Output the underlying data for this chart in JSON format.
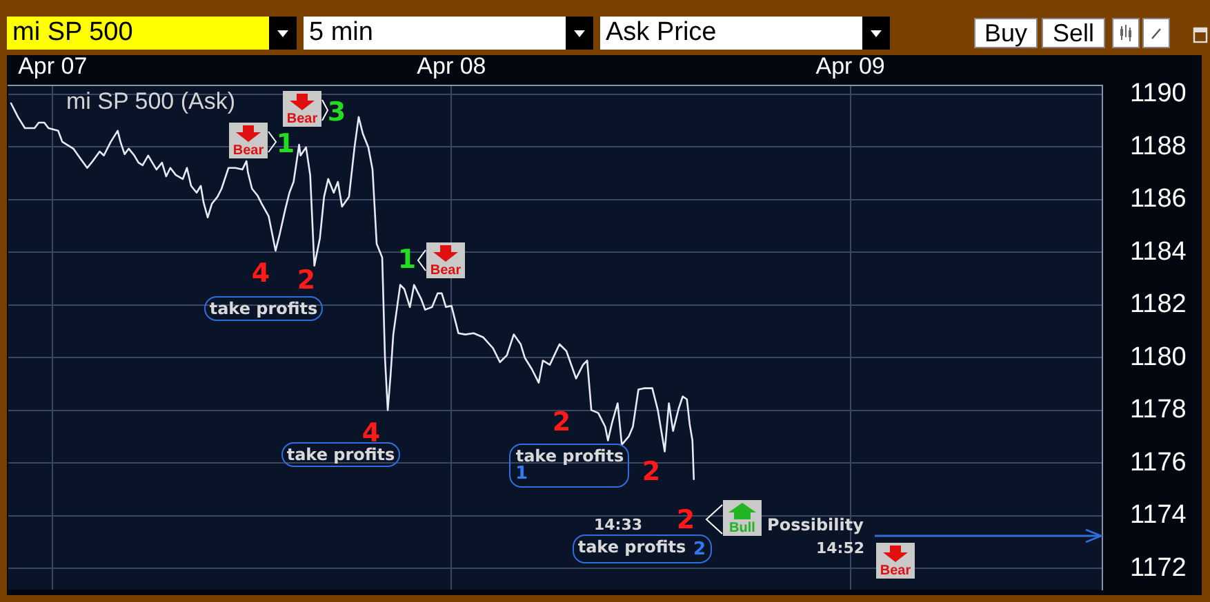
{
  "chart_data": {
    "type": "line",
    "title": "mi SP 500 (Ask)",
    "x": [
      "--04-06T21:30",
      "--04-06T21:55",
      "--04-06T22:20",
      "--04-06T22:55",
      "--04-06T23:10",
      "--04-06T23:30",
      "--04-06T23:45",
      "--04-07T00:20",
      "--04-07T00:35",
      "--04-07T01:15",
      "--04-07T01:40",
      "--04-07T02:05",
      "--04-07T02:25",
      "--04-07T02:50",
      "--04-07T03:05",
      "--04-07T03:30",
      "--04-07T03:55",
      "--04-07T04:05",
      "--04-07T04:20",
      "--04-07T04:35",
      "--04-07T04:55",
      "--04-07T05:10",
      "--04-07T05:25",
      "--04-07T05:45",
      "--04-07T06:00",
      "--04-07T06:15",
      "--04-07T06:35",
      "--04-07T06:50",
      "--04-07T07:05",
      "--04-07T07:25",
      "--04-07T07:50",
      "--04-07T08:05",
      "--04-07T08:20",
      "--04-07T08:40",
      "--04-07T08:55",
      "--04-07T09:05",
      "--04-07T09:20",
      "--04-07T09:35",
      "--04-07T09:55",
      "--04-07T10:10",
      "--04-07T10:35",
      "--04-07T11:00",
      "--04-07T11:25",
      "--04-07T11:40",
      "--04-07T11:45",
      "--04-07T12:00",
      "--04-07T12:20",
      "--04-07T12:35",
      "--04-07T13:00",
      "--04-07T13:25",
      "--04-07T13:40",
      "--04-07T14:00",
      "--04-07T14:15",
      "--04-07T14:30",
      "--04-07T14:50",
      "--04-07T14:55",
      "--04-07T15:15",
      "--04-07T15:30",
      "--04-07T15:45",
      "--04-07T16:05",
      "--04-07T16:20",
      "--04-07T16:35",
      "--04-07T16:55",
      "--04-07T17:10",
      "--04-07T17:25",
      "--04-07T17:50",
      "--04-07T18:10",
      "--04-07T18:25",
      "--04-07T18:40",
      "--04-07T19:00",
      "--04-07T19:15",
      "--04-07T19:30",
      "--04-07T19:50",
      "--04-07T20:00",
      "--04-07T20:10",
      "--04-07T20:20",
      "--04-07T20:30",
      "--04-07T20:55",
      "--04-07T21:10",
      "--04-07T21:30",
      "--04-07T21:45",
      "--04-07T22:10",
      "--04-07T22:25",
      "--04-07T22:50",
      "--04-07T23:10",
      "--04-07T23:25",
      "--04-07T23:40",
      "--04-08T00:00",
      "--04-08T00:25",
      "--04-08T00:50",
      "--04-08T01:20",
      "--04-08T01:55",
      "--04-08T02:30",
      "--04-08T02:55",
      "--04-08T03:20",
      "--04-08T03:45",
      "--04-08T04:10",
      "--04-08T04:25",
      "--04-08T04:50",
      "--04-08T05:15",
      "--04-08T05:30",
      "--04-08T05:55",
      "--04-08T06:30",
      "--04-08T06:55",
      "--04-08T07:30",
      "--04-08T07:55",
      "--04-08T08:10",
      "--04-08T08:25",
      "--04-08T08:50",
      "--04-08T09:15",
      "--04-08T09:25",
      "--04-08T09:40",
      "--04-08T10:00",
      "--04-08T10:15",
      "--04-08T10:40",
      "--04-08T10:55",
      "--04-08T11:15",
      "--04-08T11:35",
      "--04-08T12:05",
      "--04-08T12:25",
      "--04-08T12:50",
      "--04-08T13:05",
      "--04-08T13:20",
      "--04-08T13:40",
      "--04-08T13:55",
      "--04-08T14:10",
      "--04-08T14:20",
      "--04-08T14:30",
      "--04-08T14:35"
    ],
    "color": "#e6ebf5",
    "values": [
      1189.65,
      1189.13,
      1188.71,
      1188.71,
      1188.92,
      1188.92,
      1188.71,
      1188.61,
      1188.19,
      1187.93,
      1187.56,
      1187.2,
      1187.46,
      1187.82,
      1187.67,
      1188.19,
      1188.61,
      1188.19,
      1187.72,
      1187.93,
      1187.67,
      1187.4,
      1187.3,
      1187.67,
      1187.4,
      1187.14,
      1187.4,
      1186.88,
      1187.2,
      1186.93,
      1186.78,
      1187.2,
      1186.52,
      1186.26,
      1186.52,
      1185.89,
      1185.32,
      1185.84,
      1186.1,
      1186.41,
      1187.2,
      1187.2,
      1187.14,
      1187.46,
      1187.04,
      1186.41,
      1186.15,
      1185.84,
      1185.37,
      1184.06,
      1184.69,
      1185.63,
      1186.26,
      1186.67,
      1188.08,
      1187.67,
      1187.98,
      1186.93,
      1183.49,
      1184.53,
      1186.1,
      1186.78,
      1186.26,
      1186.67,
      1185.73,
      1186.1,
      1187.98,
      1189.13,
      1188.5,
      1187.98,
      1187.14,
      1184.32,
      1183.8,
      1179.99,
      1178.01,
      1179.31,
      1180.88,
      1182.76,
      1182.6,
      1181.92,
      1182.76,
      1182.24,
      1181.82,
      1181.92,
      1182.44,
      1182.44,
      1181.92,
      1181.97,
      1180.93,
      1180.88,
      1180.93,
      1180.77,
      1180.36,
      1179.83,
      1180.09,
      1180.88,
      1180.51,
      1179.99,
      1179.57,
      1179.05,
      1179.89,
      1179.73,
      1180.51,
      1180.25,
      1179.21,
      1179.73,
      1179.89,
      1178.01,
      1177.9,
      1177.38,
      1176.86,
      1177.54,
      1178.27,
      1176.7,
      1177.01,
      1177.38,
      1178.79,
      1178.84,
      1178.84,
      1178.01,
      1176.44,
      1178.27,
      1177.22,
      1178.06,
      1178.53,
      1178.42,
      1177.48,
      1176.86,
      1175.39
    ],
    "xlim": [
      "--04-06T21:20",
      "--04-09T15:10"
    ],
    "xticks": [
      {
        "value": "--04-07",
        "label": "Apr 07"
      },
      {
        "value": "--04-08",
        "label": "Apr 08"
      },
      {
        "value": "--04-09",
        "label": "Apr 09"
      }
    ],
    "ylim": [
      1171.2,
      1190.33
    ],
    "yticks": [
      1172,
      1174,
      1176,
      1178,
      1180,
      1182,
      1184,
      1186,
      1188,
      1190
    ],
    "grid": true,
    "marker": "none",
    "annotations": [
      "mi SP 500",
      "5 min",
      "Ask Price",
      "Buy",
      "Sell",
      "Bear",
      "1",
      "Bear",
      "3",
      "Bear",
      "1",
      "4",
      "2",
      "take profits",
      "4",
      "take profits",
      "2",
      "take profits",
      "1",
      "2",
      "14:33",
      "2",
      "Bull",
      "Possibility",
      "14:52",
      "take profits",
      "2",
      "Bear"
    ]
  }
}
